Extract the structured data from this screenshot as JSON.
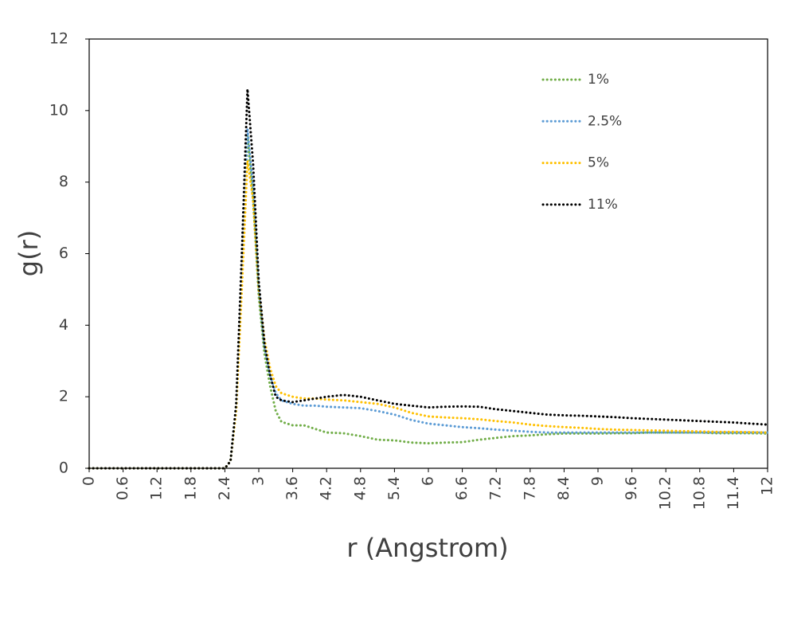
{
  "chart_data": {
    "type": "line",
    "xlabel": "r (Angstrom)",
    "ylabel": "g(r)",
    "x": [
      0,
      2.4,
      2.5,
      2.6,
      2.7,
      2.8,
      2.9,
      3.0,
      3.1,
      3.2,
      3.3,
      3.4,
      3.6,
      3.8,
      4.0,
      4.2,
      4.5,
      4.8,
      5.1,
      5.4,
      5.7,
      6.0,
      6.3,
      6.6,
      6.9,
      7.2,
      7.5,
      7.8,
      8.1,
      8.4,
      8.7,
      9.0,
      9.3,
      9.6,
      9.9,
      10.2,
      10.5,
      10.8,
      11.1,
      11.4,
      11.7,
      12.0
    ],
    "series": [
      {
        "name": "1%",
        "color": "#70ad47",
        "values": [
          0,
          0,
          0.2,
          1.7,
          5.5,
          9.3,
          7.5,
          4.8,
          3.2,
          2.3,
          1.6,
          1.3,
          1.2,
          1.2,
          1.1,
          1.0,
          0.98,
          0.9,
          0.8,
          0.78,
          0.72,
          0.7,
          0.72,
          0.73,
          0.8,
          0.85,
          0.9,
          0.92,
          0.95,
          0.97,
          0.97,
          0.97,
          0.98,
          0.98,
          1.0,
          1.0,
          1.0,
          1.0,
          0.98,
          0.98,
          0.98,
          0.97
        ]
      },
      {
        "name": "2.5%",
        "color": "#5b9bd5",
        "values": [
          0,
          0,
          0.2,
          1.7,
          5.5,
          9.5,
          7.8,
          5.0,
          3.4,
          2.6,
          2.1,
          1.9,
          1.8,
          1.75,
          1.75,
          1.72,
          1.7,
          1.68,
          1.6,
          1.5,
          1.35,
          1.25,
          1.2,
          1.15,
          1.12,
          1.08,
          1.05,
          1.02,
          1.0,
          1.0,
          1.0,
          1.0,
          1.0,
          1.0,
          1.0,
          1.0,
          1.0,
          1.0,
          1.0,
          1.0,
          1.0,
          1.0
        ]
      },
      {
        "name": "5%",
        "color": "#ffc000",
        "values": [
          0,
          0,
          0.2,
          1.6,
          5.0,
          8.6,
          7.5,
          5.0,
          3.6,
          2.8,
          2.3,
          2.1,
          2.0,
          1.95,
          1.95,
          1.92,
          1.9,
          1.85,
          1.8,
          1.7,
          1.55,
          1.45,
          1.42,
          1.4,
          1.37,
          1.32,
          1.28,
          1.22,
          1.18,
          1.15,
          1.13,
          1.1,
          1.08,
          1.07,
          1.06,
          1.05,
          1.04,
          1.03,
          1.02,
          1.02,
          1.01,
          1.0
        ]
      },
      {
        "name": "11%",
        "color": "#000000",
        "values": [
          0,
          0,
          0.2,
          1.8,
          6.0,
          10.6,
          8.5,
          5.2,
          3.5,
          2.6,
          2.0,
          1.9,
          1.85,
          1.9,
          1.95,
          2.0,
          2.05,
          2.0,
          1.9,
          1.8,
          1.75,
          1.7,
          1.72,
          1.73,
          1.72,
          1.65,
          1.6,
          1.55,
          1.5,
          1.48,
          1.47,
          1.45,
          1.43,
          1.4,
          1.38,
          1.36,
          1.34,
          1.32,
          1.3,
          1.28,
          1.25,
          1.22
        ]
      }
    ],
    "xlim": [
      0,
      12
    ],
    "xticks": [
      0,
      0.6,
      1.2,
      1.8,
      2.4,
      3,
      3.6,
      4.2,
      4.8,
      5.4,
      6,
      6.6,
      7.2,
      7.8,
      8.4,
      9,
      9.6,
      10.2,
      10.8,
      11.4,
      12
    ],
    "ylim": [
      0,
      12
    ],
    "yticks": [
      0,
      2,
      4,
      6,
      8,
      10,
      12
    ],
    "grid": false,
    "legend": "top-right"
  }
}
